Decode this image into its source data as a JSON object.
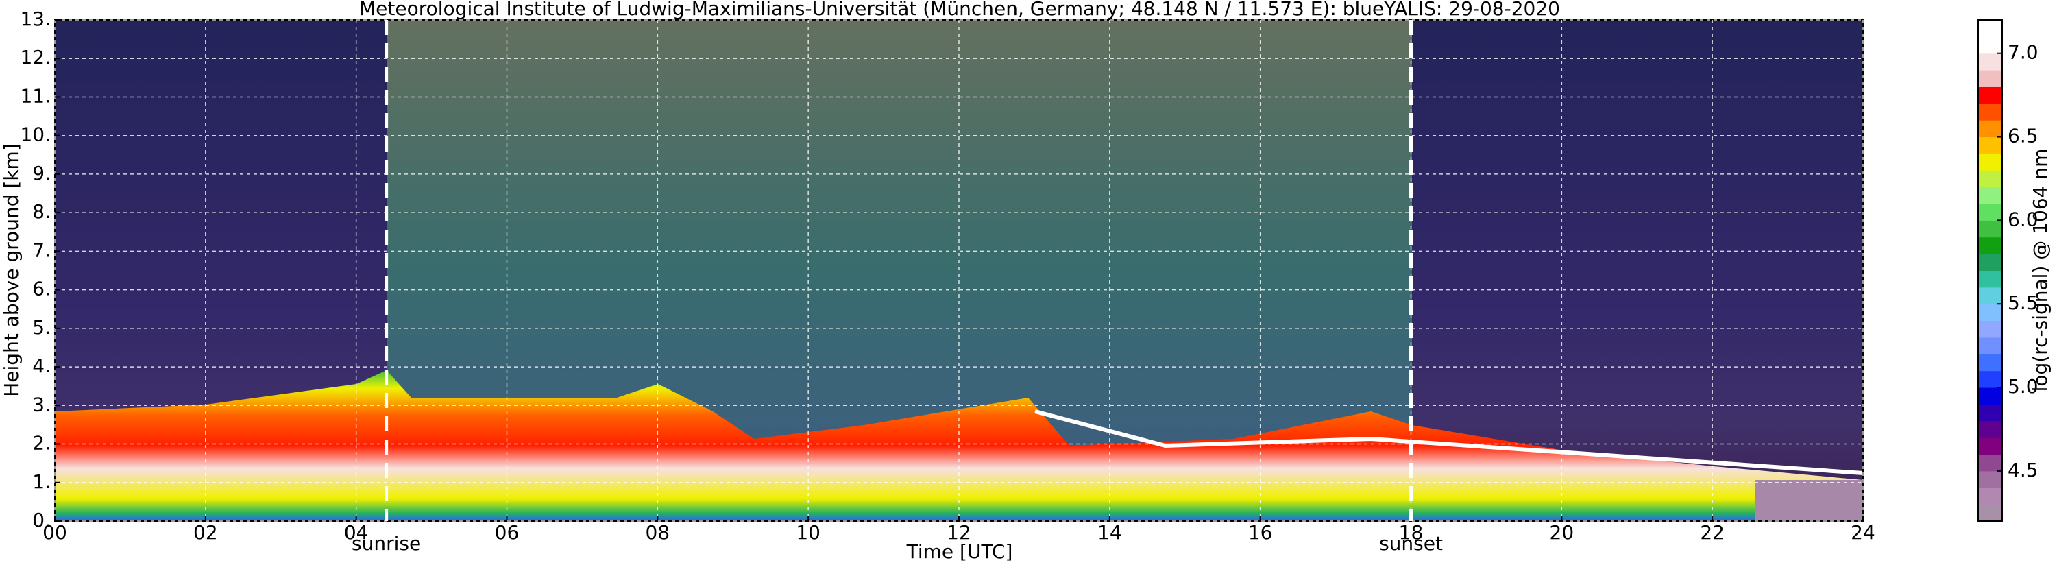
{
  "chart_data": {
    "type": "heatmap",
    "title": "Meteorological Institute of Ludwig-Maximilians-Universität (München, Germany; 48.148 N / 11.573 E):    blueYALIS: 29-08-2020",
    "xlabel": "Time [UTC]",
    "ylabel": "Height above ground [km]",
    "colorbar_label": "log(rc-signal) @ 1064 nm",
    "xlim": [
      0,
      24
    ],
    "xticks": [
      {
        "value": 0,
        "label": "00"
      },
      {
        "value": 2,
        "label": "02"
      },
      {
        "value": 4,
        "label": "04"
      },
      {
        "value": 6,
        "label": "06"
      },
      {
        "value": 8,
        "label": "08"
      },
      10,
      12,
      14,
      16,
      18,
      20,
      22,
      24
    ],
    "ylim": [
      0,
      13
    ],
    "yticks": [
      {
        "value": 0,
        "label": "0."
      },
      {
        "value": 1,
        "label": "1."
      },
      {
        "value": 2,
        "label": "2."
      },
      {
        "value": 3,
        "label": "3."
      },
      {
        "value": 4,
        "label": "4."
      },
      {
        "value": 5,
        "label": "5."
      },
      {
        "value": 6,
        "label": "6."
      },
      {
        "value": 7,
        "label": "7."
      },
      {
        "value": 8,
        "label": "8."
      },
      {
        "value": 9,
        "label": "9."
      },
      {
        "value": 10,
        "label": "10."
      },
      {
        "value": 11,
        "label": "11."
      },
      {
        "value": 12,
        "label": "12."
      },
      {
        "value": 13,
        "label": "13."
      }
    ],
    "clim": [
      4.2,
      7.2
    ],
    "cticks": [
      4.5,
      {
        "value": 5,
        "label": "5.0"
      },
      5.5,
      {
        "value": 6,
        "label": "6.0"
      },
      6.5,
      {
        "value": 7,
        "label": "7.0"
      }
    ],
    "colormap": [
      "#a890a8",
      "#b088b0",
      "#a070a0",
      "#904890",
      "#800080",
      "#600090",
      "#3000b0",
      "#0000e0",
      "#2040ff",
      "#4070ff",
      "#7090ff",
      "#90a8ff",
      "#80c0ff",
      "#60d0e0",
      "#30c0a0",
      "#20a060",
      "#10a010",
      "#40c040",
      "#60e060",
      "#90f080",
      "#c0f040",
      "#f0f000",
      "#ffc000",
      "#ff9000",
      "#ff5000",
      "#ff0000",
      "#f0c0c0",
      "#f8e0e0",
      "#ffffff",
      "#ffffff"
    ],
    "grid": true,
    "annotations": [
      {
        "x": 4.4,
        "text": "sunrise"
      },
      {
        "x": 18.0,
        "text": "sunset"
      }
    ]
  }
}
